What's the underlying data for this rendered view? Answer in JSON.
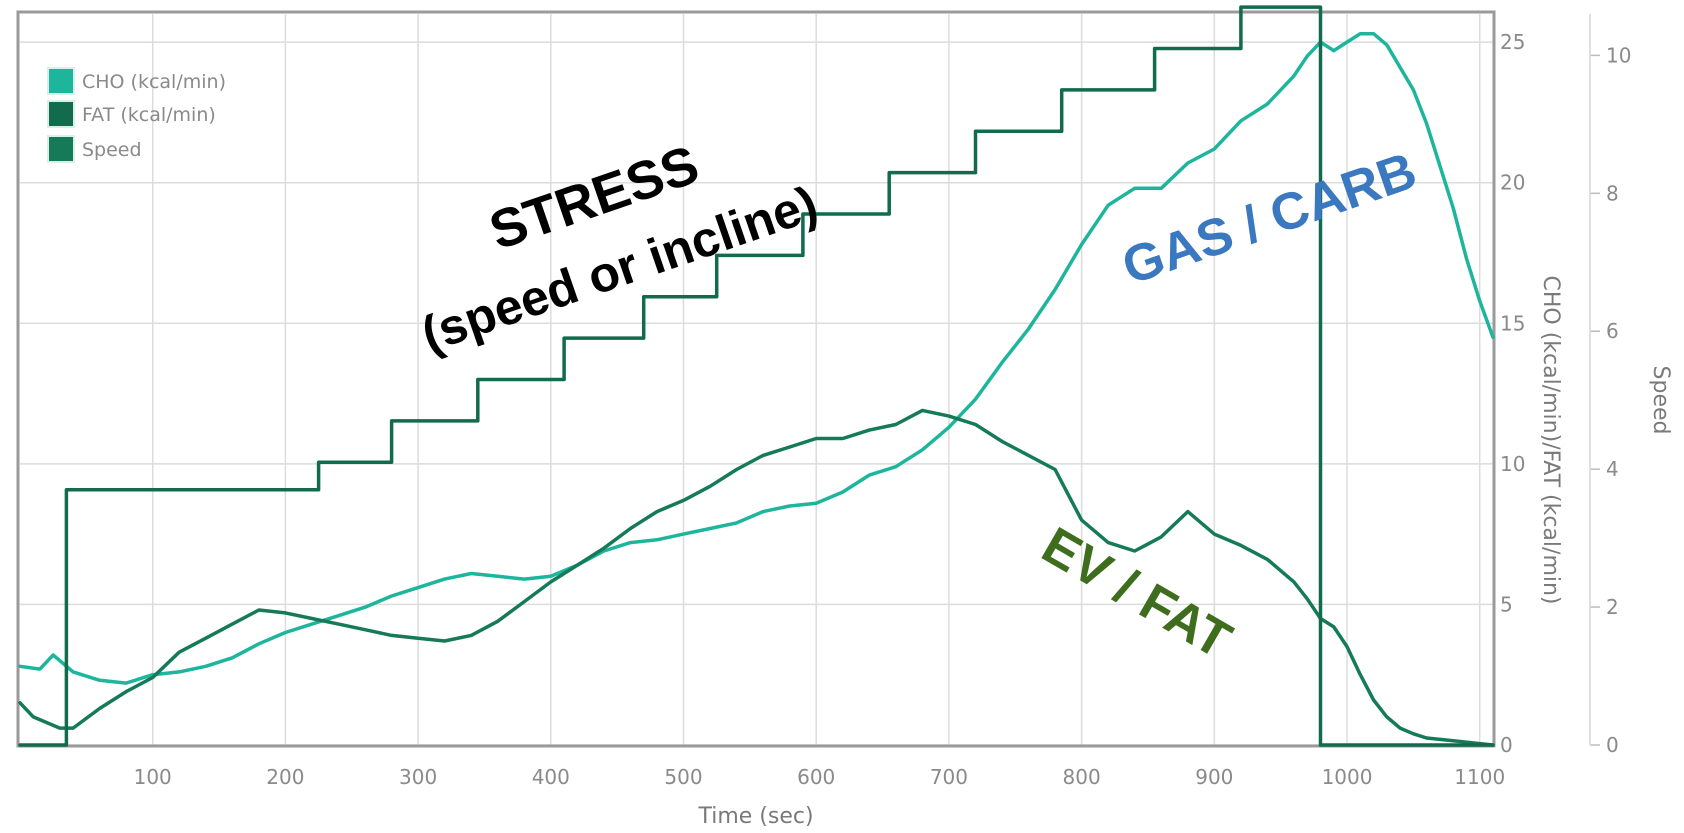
{
  "chart_data": {
    "type": "line",
    "x_axis": {
      "label": "Time (sec)",
      "range": [
        0,
        1110
      ],
      "ticks": [
        100,
        200,
        300,
        400,
        500,
        600,
        700,
        800,
        900,
        1000,
        1100
      ]
    },
    "y_axis_left": {
      "label": "CHO (kcal/min)/FAT (kcal/min)",
      "range": [
        0,
        26
      ],
      "ticks": [
        0,
        5,
        10,
        15,
        20,
        25
      ]
    },
    "y_axis_right": {
      "label": "Speed",
      "range": [
        0,
        10.6
      ],
      "ticks": [
        0,
        2,
        4,
        6,
        8,
        10
      ]
    },
    "grid": true,
    "legend": {
      "placement": "top-left",
      "entries": [
        "CHO (kcal/min)",
        "FAT (kcal/min)",
        "Speed"
      ]
    },
    "series": [
      {
        "name": "CHO (kcal/min)",
        "axis": "left",
        "color": "#1db59c",
        "x": [
          0,
          15,
          25,
          40,
          60,
          80,
          100,
          120,
          140,
          160,
          180,
          200,
          220,
          240,
          260,
          280,
          300,
          320,
          340,
          360,
          380,
          400,
          420,
          440,
          460,
          480,
          500,
          520,
          540,
          560,
          580,
          600,
          620,
          640,
          660,
          680,
          700,
          720,
          740,
          760,
          780,
          800,
          820,
          840,
          860,
          880,
          900,
          920,
          940,
          960,
          970,
          980,
          990,
          1000,
          1010,
          1020,
          1030,
          1040,
          1050,
          1060,
          1070,
          1080,
          1090,
          1100,
          1110
        ],
        "y": [
          2.8,
          2.7,
          3.2,
          2.6,
          2.3,
          2.2,
          2.5,
          2.6,
          2.8,
          3.1,
          3.6,
          4.0,
          4.3,
          4.6,
          4.9,
          5.3,
          5.6,
          5.9,
          6.1,
          6.0,
          5.9,
          6.0,
          6.4,
          6.9,
          7.2,
          7.3,
          7.5,
          7.7,
          7.9,
          8.3,
          8.5,
          8.6,
          9.0,
          9.6,
          9.9,
          10.5,
          11.3,
          12.3,
          13.6,
          14.8,
          16.2,
          17.8,
          19.2,
          19.8,
          19.8,
          20.7,
          21.2,
          22.2,
          22.8,
          23.8,
          24.5,
          25.0,
          24.7,
          25.0,
          25.3,
          25.3,
          24.9,
          24.1,
          23.3,
          22.1,
          20.6,
          19.1,
          17.3,
          15.8,
          14.5
        ]
      },
      {
        "name": "FAT (kcal/min)",
        "axis": "left",
        "color": "#157a58",
        "x": [
          0,
          10,
          20,
          30,
          40,
          60,
          80,
          100,
          120,
          140,
          160,
          180,
          200,
          220,
          240,
          260,
          280,
          300,
          320,
          340,
          360,
          380,
          400,
          420,
          440,
          460,
          480,
          500,
          520,
          540,
          560,
          580,
          600,
          620,
          640,
          660,
          680,
          700,
          720,
          740,
          760,
          780,
          800,
          820,
          840,
          860,
          880,
          900,
          920,
          940,
          960,
          970,
          980,
          990,
          1000,
          1010,
          1020,
          1030,
          1040,
          1050,
          1060,
          1080,
          1100,
          1110
        ],
        "y": [
          1.5,
          1.0,
          0.8,
          0.6,
          0.6,
          1.3,
          1.9,
          2.4,
          3.3,
          3.8,
          4.3,
          4.8,
          4.7,
          4.5,
          4.3,
          4.1,
          3.9,
          3.8,
          3.7,
          3.9,
          4.4,
          5.1,
          5.8,
          6.4,
          7.0,
          7.7,
          8.3,
          8.7,
          9.2,
          9.8,
          10.3,
          10.6,
          10.9,
          10.9,
          11.2,
          11.4,
          11.9,
          11.7,
          11.4,
          10.8,
          10.3,
          9.8,
          8.0,
          7.2,
          6.9,
          7.4,
          8.3,
          7.5,
          7.1,
          6.6,
          5.8,
          5.2,
          4.5,
          4.2,
          3.5,
          2.5,
          1.6,
          1.0,
          0.6,
          0.4,
          0.25,
          0.15,
          0.05,
          0.0
        ]
      },
      {
        "name": "Speed",
        "axis": "right",
        "color": "#126b4c",
        "x": [
          0,
          35,
          35,
          225,
          225,
          280,
          280,
          345,
          345,
          410,
          410,
          470,
          470,
          525,
          525,
          590,
          590,
          655,
          655,
          720,
          720,
          785,
          785,
          855,
          855,
          920,
          920,
          980,
          980,
          1110
        ],
        "y": [
          0,
          0,
          3.7,
          3.7,
          4.1,
          4.1,
          4.7,
          4.7,
          5.3,
          5.3,
          5.9,
          5.9,
          6.5,
          6.5,
          7.1,
          7.1,
          7.7,
          7.7,
          8.3,
          8.3,
          8.9,
          8.9,
          9.5,
          9.5,
          10.1,
          10.1,
          10.7,
          10.7,
          0,
          0
        ]
      }
    ],
    "annotations": [
      {
        "text": "STRESS",
        "color": "#000000"
      },
      {
        "text": "(speed or incline)",
        "color": "#000000"
      },
      {
        "text": "GAS / CARB",
        "color": "#3a78c0"
      },
      {
        "text": "EV / FAT",
        "color": "#3e6e1d"
      }
    ]
  }
}
